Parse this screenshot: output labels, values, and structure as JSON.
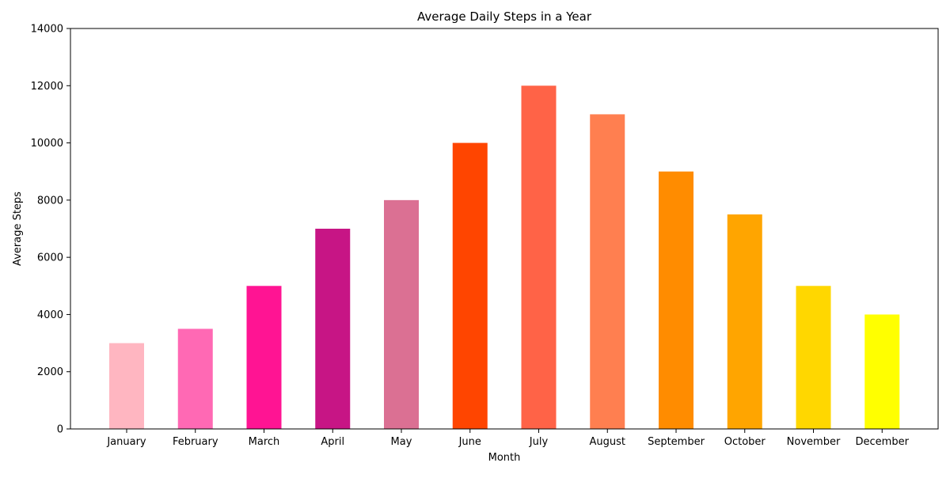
{
  "chart_data": {
    "type": "bar",
    "title": "Average Daily Steps in a Year",
    "xlabel": "Month",
    "ylabel": "Average Steps",
    "categories": [
      "January",
      "February",
      "March",
      "April",
      "May",
      "June",
      "July",
      "August",
      "September",
      "October",
      "November",
      "December"
    ],
    "values": [
      3000,
      3500,
      5000,
      7000,
      8000,
      10000,
      12000,
      11000,
      9000,
      7500,
      5000,
      4000
    ],
    "colors": [
      "#FFB6C1",
      "#FF69B4",
      "#FF1493",
      "#C71585",
      "#DB7093",
      "#FF4500",
      "#FF6347",
      "#FF7F50",
      "#FF8C00",
      "#FFA500",
      "#FFD700",
      "#FFFF00"
    ],
    "ylim": [
      0,
      14000
    ],
    "yticks": [
      0,
      2000,
      4000,
      6000,
      8000,
      10000,
      12000,
      14000
    ],
    "grid": false,
    "legend": "none"
  }
}
